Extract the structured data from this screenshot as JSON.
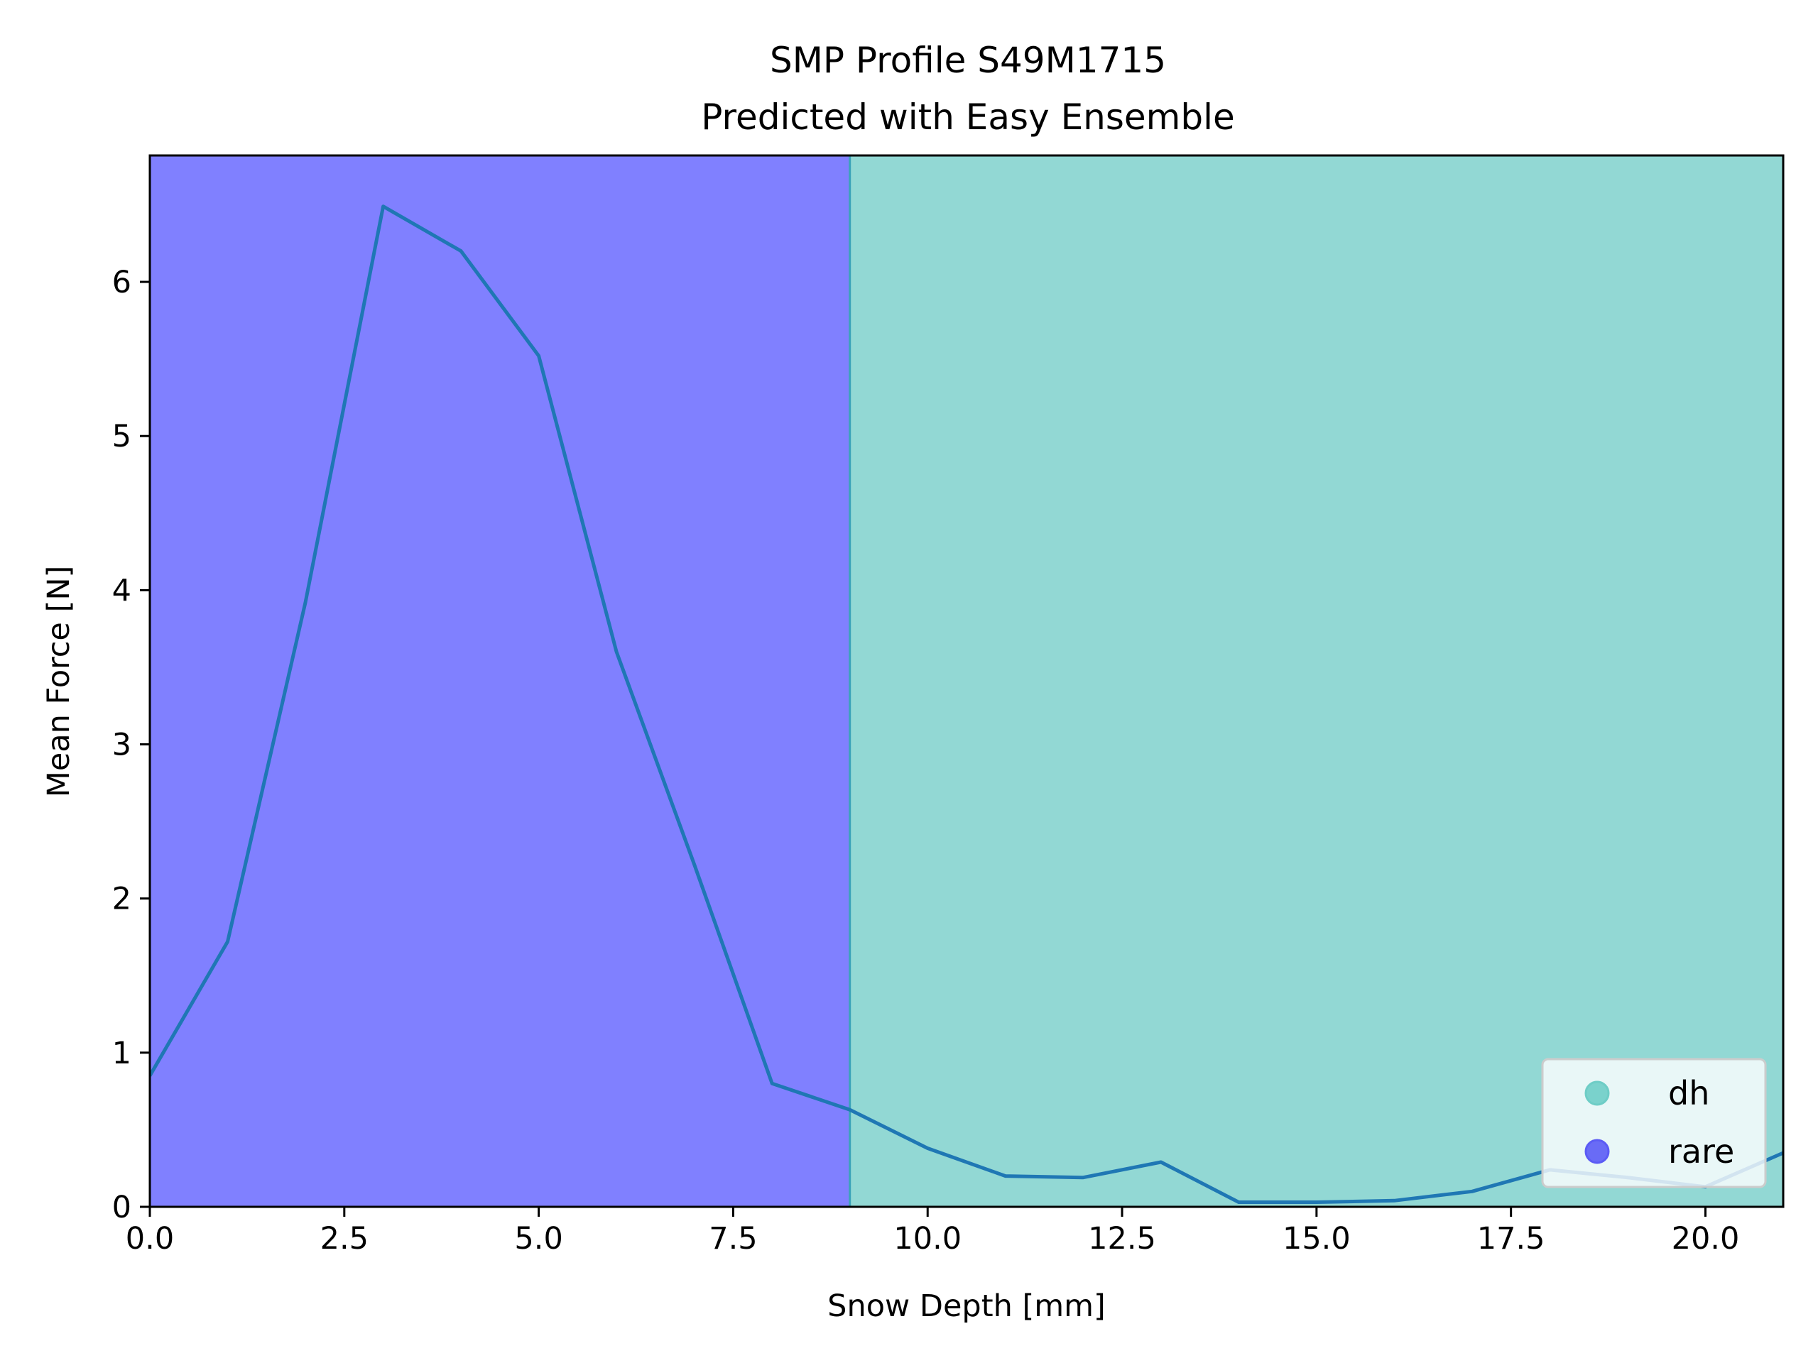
{
  "chart_data": {
    "type": "line",
    "title": "SMP Profile S49M1715",
    "subtitle": "Predicted with Easy Ensemble",
    "xlabel": "Snow Depth [mm]",
    "ylabel": "Mean Force [N]",
    "xlim": [
      0,
      21
    ],
    "ylim": [
      0,
      6.82
    ],
    "x_ticks": [
      0,
      2.5,
      5,
      7.5,
      10,
      12.5,
      15,
      17.5,
      20
    ],
    "x_tick_labels": [
      "0.0",
      "2.5",
      "5.0",
      "7.5",
      "10.0",
      "12.5",
      "15.0",
      "17.5",
      "20.0"
    ],
    "y_ticks": [
      0,
      1,
      2,
      3,
      4,
      5,
      6
    ],
    "y_tick_labels": [
      "0",
      "1",
      "2",
      "3",
      "4",
      "5",
      "6"
    ],
    "grid": false,
    "legend_position": "bottom-right",
    "series": [
      {
        "color": "#1f77b4",
        "x": [
          0,
          1,
          2,
          3,
          4,
          5,
          6,
          7,
          8,
          9,
          10,
          11,
          12,
          13,
          14,
          15,
          16,
          17,
          18,
          19,
          20,
          21
        ],
        "y": [
          0.85,
          1.72,
          3.92,
          6.49,
          6.2,
          5.52,
          3.6,
          2.22,
          0.8,
          0.63,
          0.38,
          0.2,
          0.19,
          0.29,
          0.03,
          0.03,
          0.04,
          0.1,
          0.24,
          0.19,
          0.13,
          0.35
        ]
      }
    ],
    "regions": [
      {
        "label": "rare",
        "x_start": 0,
        "x_end": 9,
        "color": "#8080ff"
      },
      {
        "label": "dh",
        "x_start": 9,
        "x_end": 21,
        "color": "#92d8d4"
      }
    ],
    "legend": [
      {
        "label": "dh",
        "color": "#6ecdc6"
      },
      {
        "label": "rare",
        "color": "#5b5bf5"
      }
    ]
  }
}
